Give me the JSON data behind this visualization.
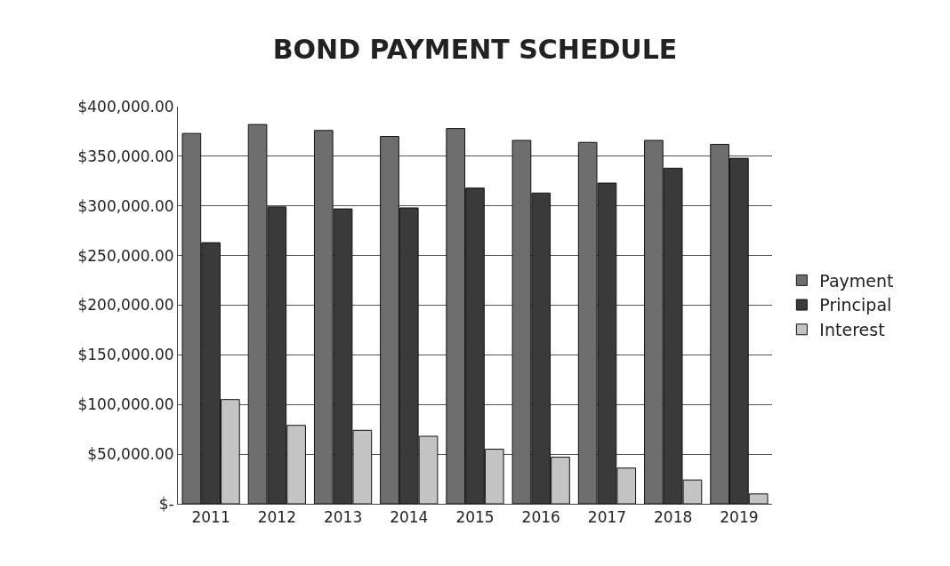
{
  "chart_data": {
    "type": "bar",
    "title": "BOND PAYMENT SCHEDULE",
    "categories": [
      "2011",
      "2012",
      "2013",
      "2014",
      "2015",
      "2016",
      "2017",
      "2018",
      "2019"
    ],
    "series": [
      {
        "name": "Payment",
        "color": "#6e6e6e",
        "values": [
          373000,
          382000,
          376000,
          370000,
          378000,
          366000,
          364000,
          366000,
          362000
        ]
      },
      {
        "name": "Principal",
        "color": "#3a3a3a",
        "values": [
          263000,
          299000,
          297000,
          298000,
          318000,
          313000,
          323000,
          338000,
          348000
        ]
      },
      {
        "name": "Interest",
        "color": "#c4c4c4",
        "values": [
          105000,
          79000,
          74000,
          68000,
          55000,
          47000,
          36000,
          24000,
          10000
        ]
      }
    ],
    "ylim": [
      0,
      400000
    ],
    "yticks": [
      {
        "value": 0,
        "label": "$-"
      },
      {
        "value": 50000,
        "label": "$50,000.00"
      },
      {
        "value": 100000,
        "label": "$100,000.00"
      },
      {
        "value": 150000,
        "label": "$150,000.00"
      },
      {
        "value": 200000,
        "label": "$200,000.00"
      },
      {
        "value": 250000,
        "label": "$250,000.00"
      },
      {
        "value": 300000,
        "label": "$300,000.00"
      },
      {
        "value": 350000,
        "label": "$350,000.00"
      },
      {
        "value": 400000,
        "label": "$400,000.00"
      }
    ],
    "grid": "y",
    "legend": "right"
  }
}
